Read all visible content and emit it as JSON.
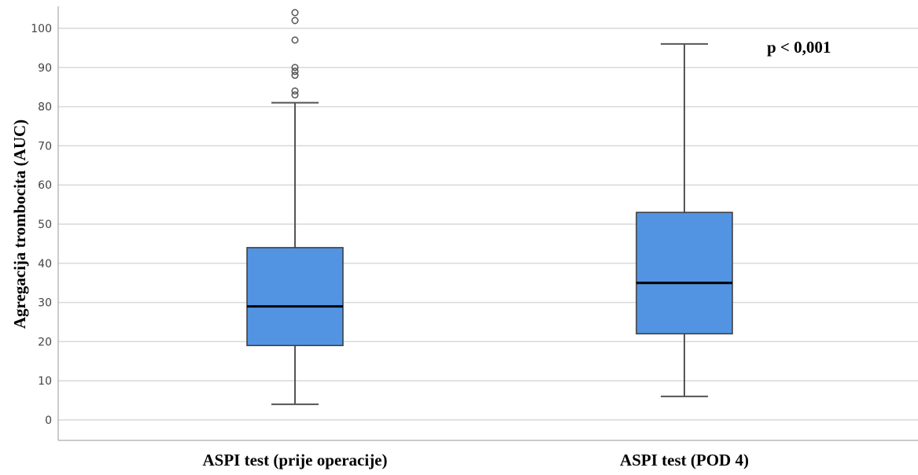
{
  "chart_data": {
    "type": "box",
    "ylabel": "Agregacija trombocita (AUC)",
    "ylim": [
      0,
      104
    ],
    "yticks": [
      0,
      10,
      20,
      30,
      40,
      50,
      60,
      70,
      80,
      90,
      100
    ],
    "grid": true,
    "categories": [
      "ASPI test (prije operacije)",
      "ASPI test (POD 4)"
    ],
    "boxes": [
      {
        "whisker_low": 4,
        "q1": 19,
        "median": 29,
        "q3": 44,
        "whisker_high": 81,
        "outliers": [
          83,
          84,
          88,
          89,
          90,
          97,
          102,
          104
        ]
      },
      {
        "whisker_low": 6,
        "q1": 22,
        "median": 35,
        "q3": 53,
        "whisker_high": 96,
        "outliers": []
      }
    ],
    "annotation": "p < 0,001",
    "colors": {
      "box_fill": "#5294e2",
      "box_stroke": "#000000",
      "grid": "#d9d9d9",
      "whisker": "#555555"
    }
  }
}
